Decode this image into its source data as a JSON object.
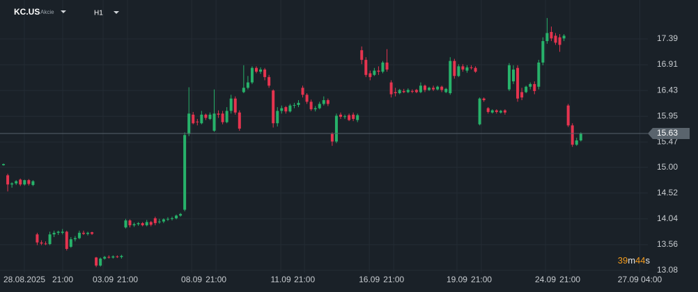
{
  "header": {
    "symbol": "KC.US",
    "instrument_type": "Akcie",
    "timeframe": "H1"
  },
  "chart_data": {
    "type": "candlestick",
    "up_color": "#27b26a",
    "down_color": "#e5344f",
    "grid": true,
    "ylim": [
      13.04,
      18.115
    ],
    "yticks": [
      13.08,
      13.56,
      14.04,
      14.52,
      {
        "value": 15,
        "label": "15.00"
      },
      15.47,
      15.95,
      16.43,
      16.91,
      17.39
    ],
    "xlim": [
      -0.83,
      152.9
    ],
    "xticks": [
      {
        "value": 4.96,
        "label": "28.08.2025"
      },
      {
        "value": 14.05,
        "label": "21:00"
      },
      {
        "value": 23.64,
        "label": "03.09"
      },
      {
        "value": 29.43,
        "label": "21:00"
      },
      {
        "value": 44.64,
        "label": "08.09"
      },
      {
        "value": 50.43,
        "label": "21:00"
      },
      {
        "value": 65.8,
        "label": "11.09"
      },
      {
        "value": 71.43,
        "label": "21:00"
      },
      {
        "value": 86.8,
        "label": "16.09"
      },
      {
        "value": 92.6,
        "label": "21:00"
      },
      {
        "value": 107.6,
        "label": "19.09"
      },
      {
        "value": 113.4,
        "label": "21:00"
      },
      {
        "value": 128.6,
        "label": "24.09"
      },
      {
        "value": 134.4,
        "label": "21:00"
      },
      {
        "value": 151.0,
        "label": "27.09 04:00"
      }
    ],
    "last_price": 15.63,
    "countdown": [
      "39",
      "m",
      "44",
      "s"
    ],
    "candles": [
      [
        15.04,
        15.07,
        15.03,
        15.06
      ],
      [
        14.85,
        14.88,
        14.55,
        14.68
      ],
      [
        14.68,
        14.72,
        14.62,
        14.7
      ],
      [
        14.7,
        14.76,
        14.67,
        14.74
      ],
      [
        14.77,
        14.79,
        14.65,
        14.68
      ],
      [
        14.68,
        14.77,
        14.66,
        14.76
      ],
      [
        14.76,
        14.78,
        14.66,
        14.69
      ],
      [
        14.67,
        14.76,
        14.65,
        14.74
      ],
      [
        13.75,
        13.78,
        13.55,
        13.6
      ],
      [
        13.6,
        13.64,
        13.55,
        13.58
      ],
      [
        13.58,
        13.62,
        13.55,
        13.57
      ],
      [
        13.57,
        13.8,
        13.55,
        13.75
      ],
      [
        13.75,
        13.82,
        13.7,
        13.78
      ],
      [
        13.78,
        13.82,
        13.74,
        13.8
      ],
      [
        13.78,
        13.85,
        13.75,
        13.8
      ],
      [
        13.8,
        13.82,
        13.45,
        13.48
      ],
      [
        13.52,
        13.7,
        13.5,
        13.66
      ],
      [
        13.66,
        13.72,
        13.62,
        13.68
      ],
      [
        13.68,
        13.82,
        13.66,
        13.78
      ],
      [
        13.78,
        13.82,
        13.74,
        13.76
      ],
      [
        13.76,
        13.8,
        13.73,
        13.78
      ],
      [
        13.79,
        13.8,
        13.74,
        13.76
      ],
      [
        13.32,
        13.33,
        13.14,
        13.17
      ],
      [
        13.17,
        13.32,
        13.15,
        13.3
      ],
      [
        13.3,
        13.35,
        13.28,
        13.33
      ],
      [
        13.33,
        13.36,
        13.3,
        13.32
      ],
      [
        13.32,
        13.36,
        13.3,
        13.34
      ],
      [
        13.34,
        13.36,
        13.31,
        13.33
      ],
      [
        13.33,
        13.37,
        13.3,
        13.35
      ],
      [
        13.88,
        14.04,
        13.86,
        14.01
      ],
      [
        14.01,
        14.03,
        13.88,
        13.92
      ],
      [
        13.92,
        13.97,
        13.89,
        13.94
      ],
      [
        13.94,
        13.98,
        13.91,
        13.96
      ],
      [
        13.96,
        13.98,
        13.9,
        13.92
      ],
      [
        13.92,
        14.02,
        13.9,
        13.98
      ],
      [
        13.98,
        14.0,
        13.9,
        13.93
      ],
      [
        14.05,
        14.08,
        13.92,
        13.96
      ],
      [
        13.98,
        14.04,
        13.95,
        13.99
      ],
      [
        13.99,
        14.05,
        13.96,
        14.03
      ],
      [
        14.03,
        14.07,
        14.0,
        14.04
      ],
      [
        14.04,
        14.08,
        14.01,
        14.05
      ],
      [
        14.05,
        14.12,
        14.03,
        14.1
      ],
      [
        14.1,
        14.15,
        14.08,
        14.13
      ],
      [
        14.21,
        15.65,
        14.18,
        15.6
      ],
      [
        15.62,
        16.49,
        15.58,
        16.0
      ],
      [
        15.98,
        16.03,
        15.8,
        15.82
      ],
      [
        15.85,
        15.9,
        15.78,
        15.84
      ],
      [
        15.82,
        16.05,
        15.8,
        15.98
      ],
      [
        15.98,
        16.0,
        15.88,
        15.92
      ],
      [
        15.9,
        16.02,
        15.88,
        15.98
      ],
      [
        15.68,
        16.45,
        15.66,
        16.0
      ],
      [
        16.0,
        16.06,
        15.92,
        15.98
      ],
      [
        16.0,
        16.05,
        15.8,
        15.84
      ],
      [
        15.84,
        16.12,
        15.82,
        16.05
      ],
      [
        16.05,
        16.35,
        16.0,
        16.28
      ],
      [
        16.28,
        16.32,
        15.98,
        16.02
      ],
      [
        16.02,
        16.06,
        15.68,
        15.72
      ],
      [
        16.4,
        16.9,
        16.38,
        16.48
      ],
      [
        16.48,
        16.7,
        16.45,
        16.58
      ],
      [
        16.58,
        16.88,
        16.55,
        16.85
      ],
      [
        16.85,
        16.88,
        16.75,
        16.78
      ],
      [
        16.78,
        16.86,
        16.74,
        16.82
      ],
      [
        16.82,
        16.85,
        16.62,
        16.68
      ],
      [
        16.68,
        16.72,
        16.48,
        16.52
      ],
      [
        16.43,
        16.45,
        15.74,
        15.82
      ],
      [
        15.82,
        16.12,
        15.76,
        16.05
      ],
      [
        16.05,
        16.15,
        16.0,
        16.1
      ],
      [
        16.12,
        16.14,
        16.0,
        16.04
      ],
      [
        16.04,
        16.18,
        16.02,
        16.15
      ],
      [
        16.15,
        16.2,
        16.1,
        16.16
      ],
      [
        16.16,
        16.25,
        16.12,
        16.2
      ],
      [
        16.48,
        16.52,
        16.3,
        16.35
      ],
      [
        16.35,
        16.38,
        16.18,
        16.22
      ],
      [
        16.22,
        16.26,
        16.05,
        16.08
      ],
      [
        16.08,
        16.14,
        16.04,
        16.1
      ],
      [
        16.1,
        16.22,
        16.08,
        16.18
      ],
      [
        16.18,
        16.32,
        16.15,
        16.25
      ],
      [
        16.25,
        16.28,
        16.14,
        16.18
      ],
      [
        15.62,
        15.65,
        15.4,
        15.48
      ],
      [
        15.48,
        16.0,
        15.45,
        15.96
      ],
      [
        15.98,
        16.02,
        15.9,
        15.94
      ],
      [
        15.94,
        15.98,
        15.9,
        15.95
      ],
      [
        15.97,
        16.0,
        15.86,
        15.88
      ],
      [
        15.98,
        16.02,
        15.86,
        15.9
      ],
      [
        15.88,
        16.0,
        15.84,
        15.97
      ],
      [
        17.18,
        17.25,
        16.92,
        17.0
      ],
      [
        17.0,
        17.05,
        16.68,
        16.72
      ],
      [
        16.75,
        16.8,
        16.62,
        16.68
      ],
      [
        16.72,
        16.85,
        16.7,
        16.8
      ],
      [
        16.8,
        16.88,
        16.72,
        16.78
      ],
      [
        16.78,
        16.98,
        16.75,
        16.95
      ],
      [
        16.95,
        17.2,
        16.78,
        16.82
      ],
      [
        16.58,
        16.62,
        16.3,
        16.36
      ],
      [
        16.4,
        16.48,
        16.32,
        16.38
      ],
      [
        16.38,
        16.46,
        16.36,
        16.44
      ],
      [
        16.42,
        16.46,
        16.38,
        16.4
      ],
      [
        16.4,
        16.47,
        16.38,
        16.44
      ],
      [
        16.42,
        16.45,
        16.38,
        16.41
      ],
      [
        16.44,
        16.46,
        16.38,
        16.4
      ],
      [
        16.4,
        16.58,
        16.38,
        16.52
      ],
      [
        16.52,
        16.54,
        16.4,
        16.44
      ],
      [
        16.44,
        16.5,
        16.42,
        16.48
      ],
      [
        16.48,
        16.52,
        16.42,
        16.45
      ],
      [
        16.45,
        16.52,
        16.43,
        16.5
      ],
      [
        16.5,
        16.52,
        16.4,
        16.44
      ],
      [
        16.4,
        16.48,
        16.38,
        16.46
      ],
      [
        16.38,
        17.05,
        16.35,
        16.98
      ],
      [
        16.98,
        17.02,
        16.65,
        16.7
      ],
      [
        16.7,
        16.92,
        16.68,
        16.88
      ],
      [
        16.88,
        16.92,
        16.78,
        16.82
      ],
      [
        16.8,
        16.9,
        16.76,
        16.86
      ],
      [
        16.86,
        16.9,
        16.82,
        16.85
      ],
      [
        16.85,
        16.88,
        16.76,
        16.78
      ],
      [
        15.8,
        16.3,
        15.78,
        16.28
      ],
      [
        16.28,
        16.3,
        16.22,
        16.25
      ],
      [
        16.1,
        16.12,
        16.0,
        16.03
      ],
      [
        16.02,
        16.08,
        16.0,
        16.06
      ],
      [
        16.06,
        16.08,
        16.0,
        16.03
      ],
      [
        16.02,
        16.07,
        16.0,
        16.05
      ],
      [
        16.06,
        16.08,
        15.98,
        16.02
      ],
      [
        16.45,
        16.94,
        16.42,
        16.9
      ],
      [
        16.6,
        16.9,
        16.55,
        16.82
      ],
      [
        16.85,
        16.9,
        16.22,
        16.28
      ],
      [
        16.4,
        16.48,
        16.25,
        16.3
      ],
      [
        16.4,
        16.52,
        16.38,
        16.5
      ],
      [
        16.5,
        16.58,
        16.45,
        16.55
      ],
      [
        16.55,
        16.6,
        16.36,
        16.42
      ],
      [
        16.5,
        17.0,
        16.45,
        16.95
      ],
      [
        16.95,
        17.42,
        16.9,
        17.35
      ],
      [
        17.35,
        17.78,
        17.3,
        17.5
      ],
      [
        17.52,
        17.62,
        17.35,
        17.4
      ],
      [
        17.45,
        17.5,
        17.28,
        17.32
      ],
      [
        17.42,
        17.48,
        17.15,
        17.28
      ],
      [
        17.4,
        17.48,
        17.35,
        17.45
      ],
      [
        16.15,
        16.18,
        15.75,
        15.78
      ],
      [
        15.78,
        15.82,
        15.38,
        15.42
      ],
      [
        15.42,
        15.55,
        15.4,
        15.5
      ],
      [
        15.5,
        15.65,
        15.48,
        15.63
      ]
    ]
  }
}
